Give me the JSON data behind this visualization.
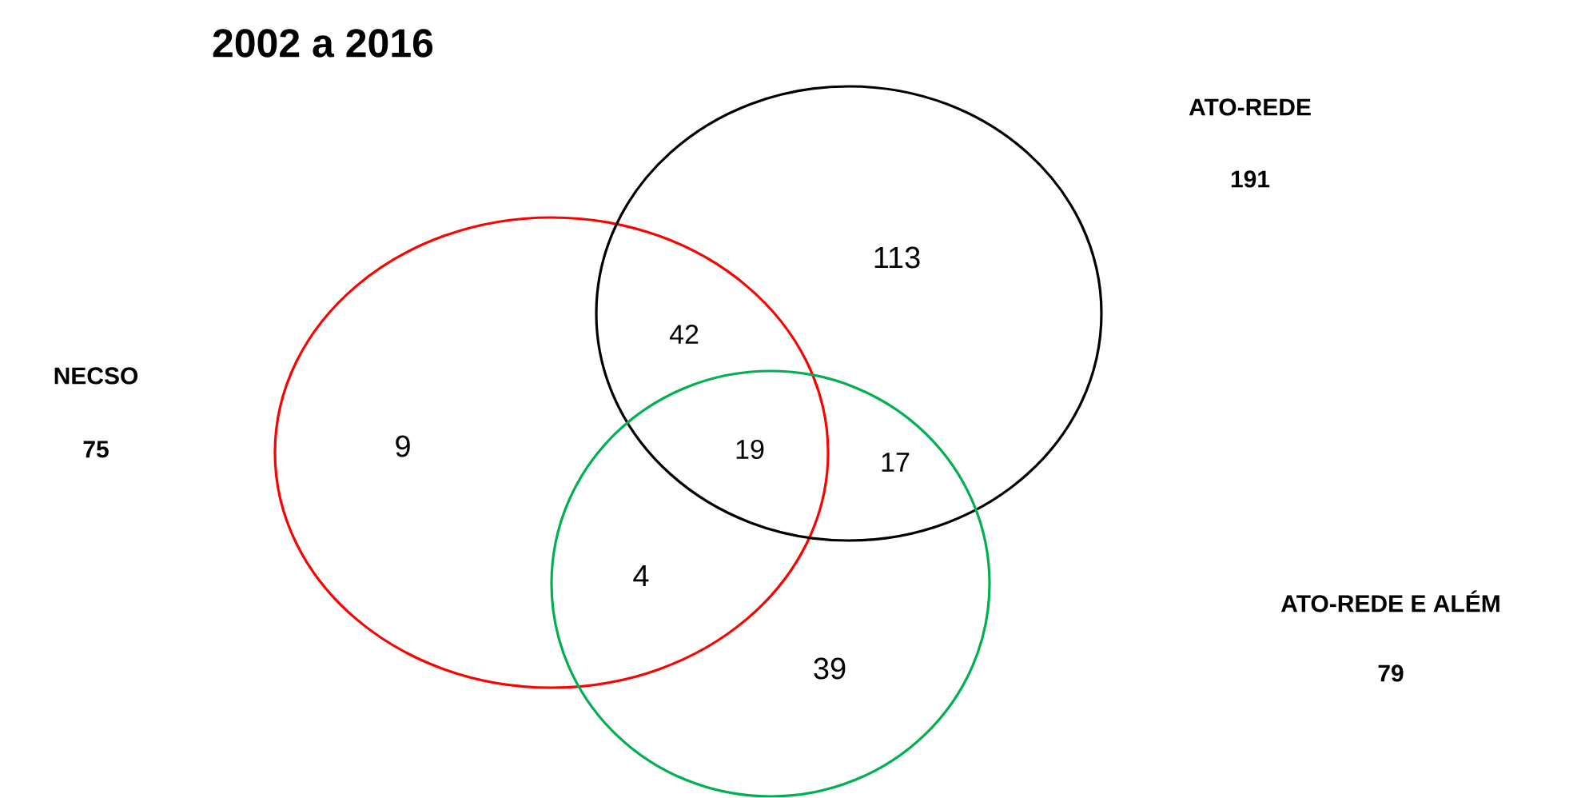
{
  "chart_data": {
    "type": "other",
    "title": "2002 a 2016",
    "categories": [
      "NECSO",
      "ATO-REDE",
      "ATO-REDE E ALÉM"
    ],
    "values": [
      75,
      191,
      79
    ],
    "data_labels": true,
    "colors": [
      "#ff0000",
      "#000000",
      "#00b050"
    ],
    "annotations": [
      "9",
      "42",
      "113",
      "19",
      "4",
      "17",
      "39"
    ]
  }
}
